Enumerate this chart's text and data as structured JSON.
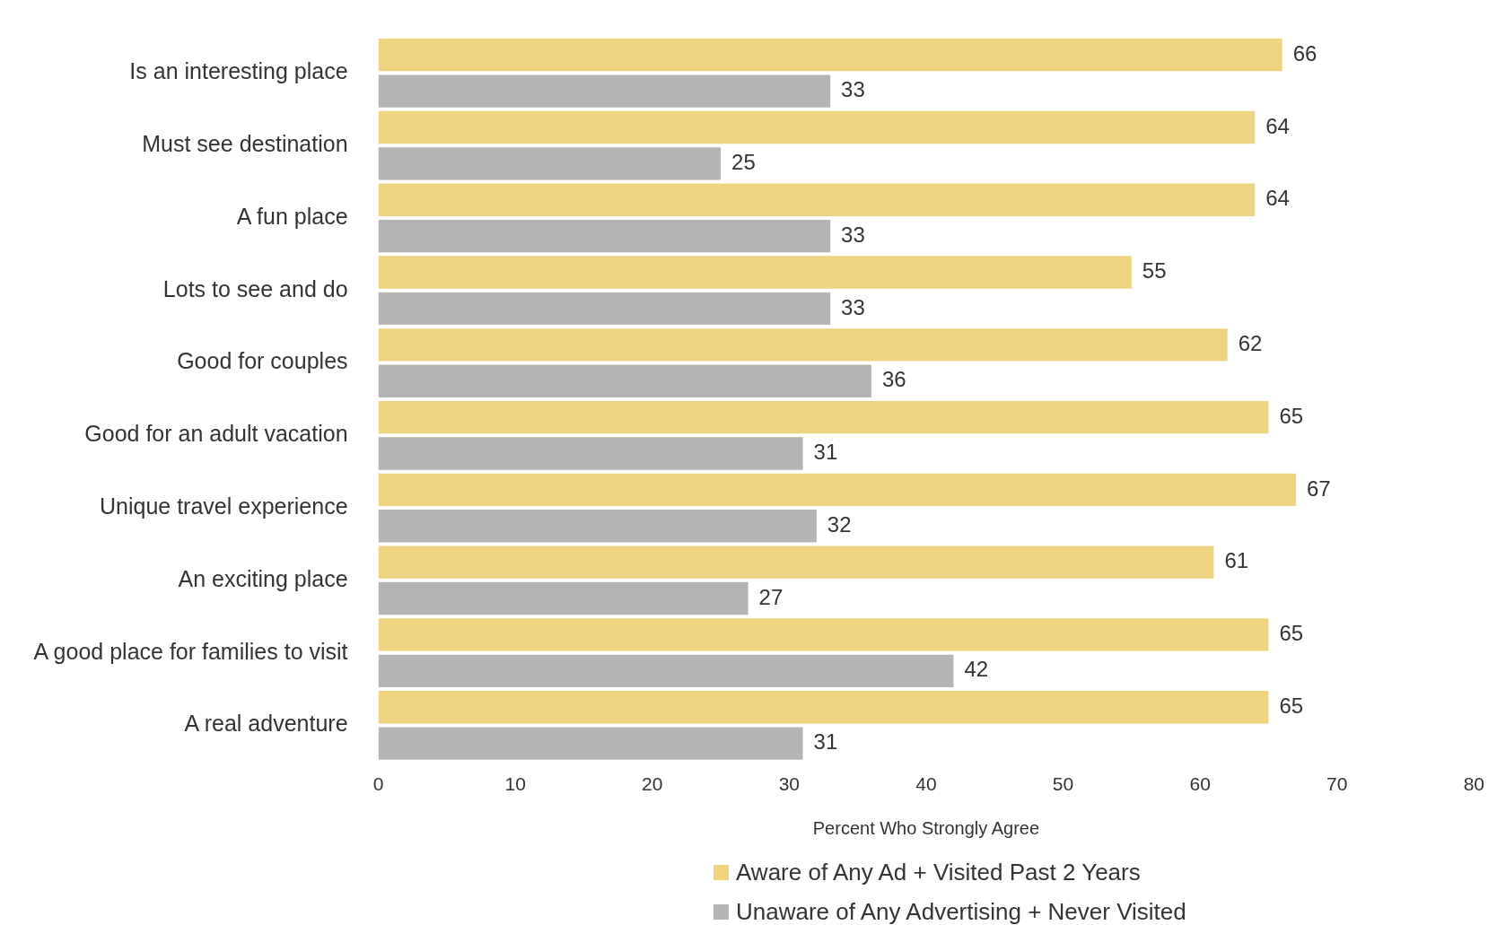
{
  "chart_data": {
    "type": "bar",
    "orientation": "horizontal",
    "xlabel": "Percent Who Strongly Agree",
    "categories": [
      "Is an interesting place",
      "Must see destination",
      "A fun place",
      "Lots to see and do",
      "Good for couples",
      "Good for an adult vacation",
      "Unique travel experience",
      "An exciting place",
      "A good place for families to visit",
      "A real adventure"
    ],
    "series": [
      {
        "name": "Aware of Any Ad + Visited Past 2 Years",
        "color": "#efd381",
        "values": [
          66,
          64,
          64,
          55,
          62,
          65,
          67,
          61,
          65,
          65
        ]
      },
      {
        "name": "Unaware of Any Advertising + Never Visited",
        "color": "#b4b4b4",
        "values": [
          33,
          25,
          33,
          33,
          36,
          31,
          32,
          27,
          42,
          31
        ]
      }
    ],
    "xlim": [
      0,
      80
    ],
    "xticks": [
      0,
      10,
      20,
      30,
      40,
      50,
      60,
      70,
      80
    ],
    "grid": false,
    "legend": "bottom",
    "data_labels": true
  }
}
